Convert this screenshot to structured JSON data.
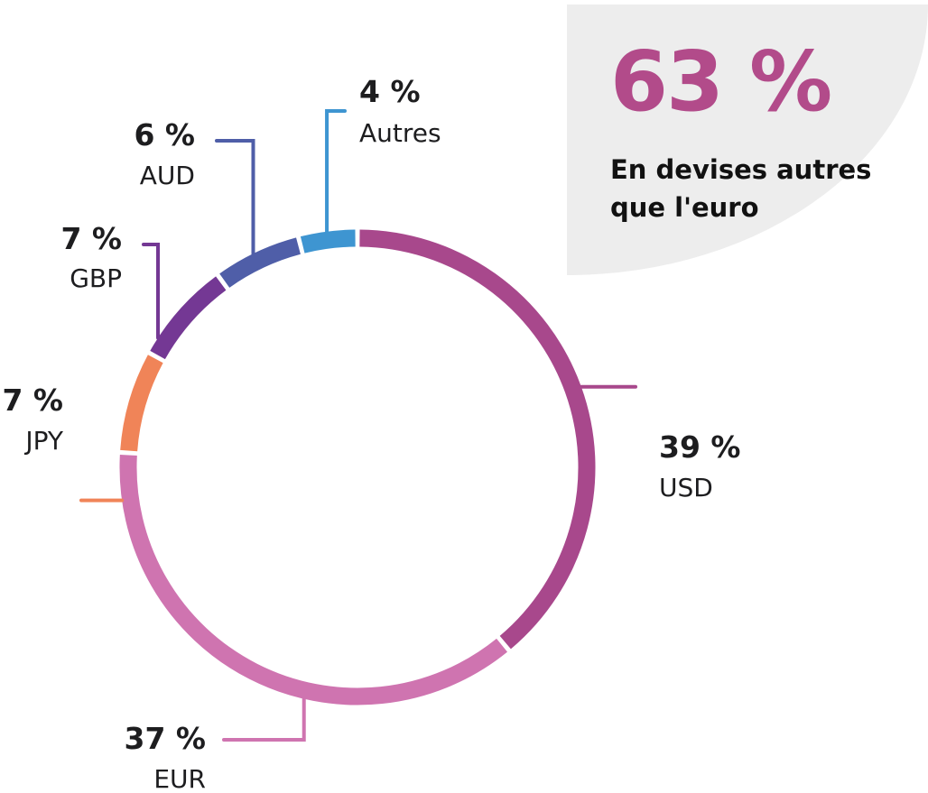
{
  "callout": {
    "headline": "63 %",
    "subtitle_line1": "En devises autres",
    "subtitle_line2": "que l'euro",
    "headline_color": "#b24b8a",
    "background_color": "#ededed"
  },
  "chart_data": {
    "type": "pie",
    "variant": "donut",
    "title": "",
    "unit": "%",
    "start": "top, clockwise",
    "slices": [
      {
        "label": "USD",
        "value": 39,
        "value_label": "39 %",
        "color": "#a8488c"
      },
      {
        "label": "EUR",
        "value": 37,
        "value_label": "37 %",
        "color": "#cf74b0"
      },
      {
        "label": "JPY",
        "value": 7,
        "value_label": "7 %",
        "color": "#f08458"
      },
      {
        "label": "GBP",
        "value": 7,
        "value_label": "7 %",
        "color": "#743894"
      },
      {
        "label": "AUD",
        "value": 6,
        "value_label": "6 %",
        "color": "#4f5ea8"
      },
      {
        "label": "Autres",
        "value": 4,
        "value_label": "4 %",
        "color": "#3e95d1"
      }
    ]
  }
}
